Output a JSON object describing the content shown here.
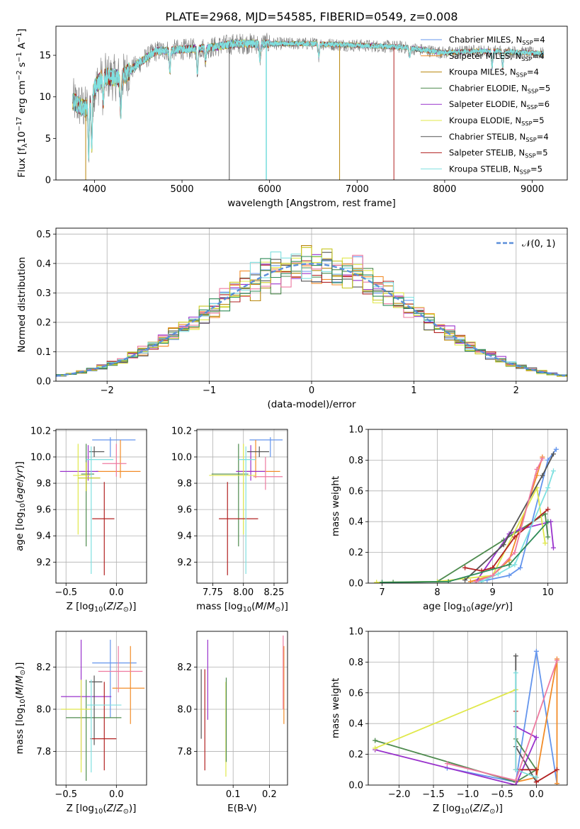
{
  "colors": [
    "#6495ED",
    "#F28C28",
    "#B8860B",
    "#4E8B4E",
    "#9932CC",
    "#E0E84A",
    "#555555",
    "#B22222",
    "#7FE0E0",
    "#EE7AA0",
    "#C8C820",
    "#2E8B57"
  ],
  "legend_labels": [
    "Chabrier MILES, N<sub>SSP</sub>=4",
    "Salpeter MILES, N<sub>SSP</sub>=4",
    "Kroupa MILES, N<sub>SSP</sub>=4",
    "Chabrier ELODIE, N<sub>SSP</sub>=5",
    "Salpeter ELODIE, N<sub>SSP</sub>=6",
    "Kroupa ELODIE, N<sub>SSP</sub>=5",
    "Chabrier STELIB, N<sub>SSP</sub>=4",
    "Salpeter STELIB, N<sub>SSP</sub>=5",
    "Kroupa STELIB, N<sub>SSP</sub>=5"
  ],
  "chart_data": [
    {
      "id": "spectrum",
      "type": "line",
      "title": "PLATE=2968, MJD=54585, FIBERID=0549, z=0.008",
      "xlabel": "wavelength [Angstrom, rest frame]",
      "ylabel": "Flux [f<sub>λ</sub>10<sup>−17</sup> erg cm<sup>−2</sup> s<sup>−1</sup> A<sup>−1</sup>]",
      "xlim": [
        3560,
        9400
      ],
      "ylim": [
        0,
        18.5
      ],
      "xticks": [
        4000,
        5000,
        6000,
        7000,
        8000,
        9000
      ],
      "yticks": [
        0,
        5,
        10,
        15
      ],
      "grid": false,
      "legend": "top-right",
      "series_x_range": [
        3750,
        9130
      ],
      "continuum": [
        [
          3750,
          9.5
        ],
        [
          3900,
          8.5
        ],
        [
          4000,
          11
        ],
        [
          4100,
          12.5
        ],
        [
          4300,
          12.2
        ],
        [
          4500,
          14
        ],
        [
          4700,
          15.5
        ],
        [
          5000,
          15.7
        ],
        [
          5300,
          15.9
        ],
        [
          5600,
          16.4
        ],
        [
          6000,
          16.4
        ],
        [
          6500,
          16.4
        ],
        [
          7000,
          16.2
        ],
        [
          7500,
          16.0
        ],
        [
          8000,
          15.3
        ],
        [
          8300,
          15.5
        ],
        [
          8600,
          15.5
        ],
        [
          9130,
          15.2
        ]
      ],
      "absorption_features": [
        [
          3934,
          6
        ],
        [
          3969,
          6
        ],
        [
          4101,
          3
        ],
        [
          4300,
          4
        ],
        [
          4861,
          2.5
        ],
        [
          5175,
          3
        ],
        [
          5270,
          1.5
        ],
        [
          5890,
          2
        ],
        [
          6563,
          1.5
        ],
        [
          7600,
          1
        ],
        [
          8542,
          2
        ],
        [
          8662,
          2
        ]
      ],
      "drop_lines": [
        [
          3900,
          2
        ],
        [
          5540,
          6
        ],
        [
          5960,
          0
        ],
        [
          5965,
          8
        ],
        [
          6800,
          2
        ],
        [
          7420,
          7
        ]
      ],
      "observed_color": "#777777"
    },
    {
      "id": "residuals",
      "type": "histogram",
      "xlabel": "(data-model)/error",
      "ylabel": "Normed distribution",
      "xlim": [
        -2.5,
        2.5
      ],
      "ylim": [
        0,
        0.52
      ],
      "xticks": [
        -2,
        -1,
        0,
        1,
        2
      ],
      "xtick_labels": [
        "−2",
        "−1",
        "0",
        "1",
        "2"
      ],
      "yticks": [
        0,
        0.1,
        0.2,
        0.3,
        0.4,
        0.5
      ],
      "grid": true,
      "reference": {
        "label": "𝒩(0, 1)",
        "type": "gaussian",
        "mean": 0,
        "sigma": 1,
        "color": "#5B8FD9",
        "dashed": true
      },
      "bin_width": 0.1,
      "series_count": 12
    },
    {
      "id": "age_vs_Z",
      "type": "errorbar",
      "xlabel": "Z [log<sub>10</sub>(<i>Z</i>/<i>Z</i><sub>⊙</sub>)]",
      "ylabel": "age  [log<sub>10</sub>(<i>age</i>/<i>yr</i>)]",
      "xlim": [
        -0.6,
        0.3
      ],
      "ylim": [
        9.04,
        10.21
      ],
      "xticks": [
        -0.5,
        0.0
      ],
      "xtick_labels": [
        "−0.5",
        "0.0"
      ],
      "yticks": [
        9.2,
        9.4,
        9.6,
        9.8,
        10.0,
        10.2
      ],
      "grid": true,
      "points": [
        {
          "c": 0,
          "x": -0.06,
          "xe": [
            0.18,
            0.25
          ],
          "y": 10.13,
          "ye": [
            0.13,
            0.02
          ]
        },
        {
          "c": 1,
          "x": 0.04,
          "xe": [
            0.24,
            0.2
          ],
          "y": 9.89,
          "ye": [
            0.05,
            0.24
          ]
        },
        {
          "c": 3,
          "x": -0.3,
          "xe": [
            0.05,
            0.08
          ],
          "y": 9.87,
          "ye": [
            0.55,
            0.23
          ]
        },
        {
          "c": 4,
          "x": -0.28,
          "xe": [
            0.28,
            0.1
          ],
          "y": 9.89,
          "ye": [
            0.07,
            0.2
          ]
        },
        {
          "c": 5,
          "x": -0.38,
          "xe": [
            0.05,
            0.12
          ],
          "y": 9.86,
          "ye": [
            0.45,
            0.24
          ]
        },
        {
          "c": 6,
          "x": -0.22,
          "xe": [
            0.05,
            0.1
          ],
          "y": 10.04,
          "ye": [
            0.04,
            0.04
          ]
        },
        {
          "c": 7,
          "x": -0.12,
          "xe": [
            0.12,
            0.1
          ],
          "y": 9.53,
          "ye": [
            0.43,
            0.28
          ]
        },
        {
          "c": 8,
          "x": -0.25,
          "xe": [
            0.05,
            0.22
          ],
          "y": 9.98,
          "ye": [
            0.87,
            0.1
          ]
        },
        {
          "c": 9,
          "x": 0.0,
          "xe": [
            0.14,
            0.1
          ],
          "y": 9.95,
          "ye": [
            0.1,
            0.15
          ]
        },
        {
          "c": 10,
          "x": -0.3,
          "xe": [
            0.08,
            0.14
          ],
          "y": 9.84,
          "ye": [
            0.1,
            0.12
          ]
        }
      ]
    },
    {
      "id": "age_vs_mass",
      "type": "errorbar",
      "xlabel": "mass [log<sub>10</sub>(<i>M</i>/<i>M</i><sub>⊙</sub>)]",
      "ylabel": "",
      "xlim": [
        7.62,
        8.36
      ],
      "ylim": [
        9.04,
        10.21
      ],
      "xticks": [
        7.75,
        8.0,
        8.25
      ],
      "xtick_labels": [
        "7.75",
        "8.00",
        "8.25"
      ],
      "yticks": [
        9.2,
        9.4,
        9.6,
        9.8,
        10.0,
        10.2
      ],
      "grid": true,
      "points": [
        {
          "c": 0,
          "x": 8.22,
          "xe": [
            0.17,
            0.1
          ],
          "y": 10.13,
          "ye": [
            0.13,
            0.02
          ]
        },
        {
          "c": 1,
          "x": 8.1,
          "xe": [
            0.15,
            0.2
          ],
          "y": 9.89,
          "ye": [
            0.05,
            0.24
          ]
        },
        {
          "c": 3,
          "x": 7.96,
          "xe": [
            0.22,
            0.08
          ],
          "y": 9.87,
          "ye": [
            0.55,
            0.23
          ]
        },
        {
          "c": 4,
          "x": 8.06,
          "xe": [
            0.12,
            0.12
          ],
          "y": 9.89,
          "ye": [
            0.07,
            0.2
          ]
        },
        {
          "c": 5,
          "x": 8.0,
          "xe": [
            0.28,
            0.1
          ],
          "y": 9.86,
          "ye": [
            0.45,
            0.24
          ]
        },
        {
          "c": 6,
          "x": 8.13,
          "xe": [
            0.1,
            0.08
          ],
          "y": 10.04,
          "ye": [
            0.04,
            0.04
          ]
        },
        {
          "c": 7,
          "x": 7.87,
          "xe": [
            0.07,
            0.25
          ],
          "y": 9.53,
          "ye": [
            0.43,
            0.28
          ]
        },
        {
          "c": 8,
          "x": 8.02,
          "xe": [
            0.06,
            0.08
          ],
          "y": 9.98,
          "ye": [
            0.87,
            0.1
          ]
        },
        {
          "c": 9,
          "x": 8.18,
          "xe": [
            0.1,
            0.14
          ],
          "y": 9.85,
          "ye": [
            0.1,
            0.15
          ]
        }
      ]
    },
    {
      "id": "mass_weight_vs_age",
      "type": "line",
      "xlabel": "age  [log<sub>10</sub>(<i>age</i>/<i>yr</i>)]",
      "ylabel": "mass weight",
      "xlim": [
        6.75,
        10.35
      ],
      "ylim": [
        0,
        1.0
      ],
      "xticks": [
        7,
        8,
        9,
        10
      ],
      "xtick_labels": [
        "7",
        "8",
        "9",
        "10"
      ],
      "yticks": [
        0.0,
        0.2,
        0.4,
        0.6,
        0.8,
        1.0
      ],
      "grid": true,
      "series": [
        {
          "c": 0,
          "x": [
            8.7,
            8.9,
            9.3,
            9.5,
            10.0,
            10.15
          ],
          "y": [
            0.01,
            0.02,
            0.05,
            0.1,
            0.8,
            0.87
          ]
        },
        {
          "c": 1,
          "x": 8.6,
          "x2": [
            8.6,
            9.0,
            9.3,
            9.8,
            9.9
          ],
          "y": [
            0.01,
            0.05,
            0.15,
            0.7,
            0.82
          ]
        },
        {
          "c": 3,
          "x": [
            7.2,
            8.0,
            9.2,
            9.95,
            10.0
          ],
          "y": [
            0.005,
            0.01,
            0.28,
            0.45,
            0.3
          ]
        },
        {
          "c": 4,
          "x": [
            8.7,
            9.3,
            9.5,
            10.05,
            10.1
          ],
          "y": [
            0.01,
            0.32,
            0.35,
            0.4,
            0.23
          ]
        },
        {
          "c": 5,
          "x": [
            6.9,
            8.0,
            9.0,
            9.8,
            9.95
          ],
          "y": [
            0.005,
            0.01,
            0.05,
            0.62,
            0.26
          ]
        },
        {
          "c": 6,
          "x": [
            8.5,
            9.2,
            9.9,
            10.1
          ],
          "y": [
            0.02,
            0.25,
            0.7,
            0.84
          ]
        },
        {
          "c": 7,
          "x": [
            8.5,
            8.8,
            9.0,
            9.4,
            10.0
          ],
          "y": [
            0.1,
            0.08,
            0.1,
            0.3,
            0.48
          ]
        },
        {
          "c": 8,
          "x": [
            8.8,
            9.1,
            9.4,
            10.0,
            10.1
          ],
          "y": [
            0.01,
            0.06,
            0.12,
            0.62,
            0.73
          ]
        },
        {
          "c": 9,
          "x": [
            8.7,
            9.0,
            9.4,
            9.8,
            9.9
          ],
          "y": [
            0.01,
            0.05,
            0.2,
            0.74,
            0.81
          ]
        },
        {
          "c": 11,
          "x": [
            7.0,
            8.2,
            9.3,
            10.0
          ],
          "y": [
            0.005,
            0.01,
            0.12,
            0.4
          ]
        }
      ]
    },
    {
      "id": "mass_vs_Z",
      "type": "errorbar",
      "xlabel": "Z [log<sub>10</sub>(<i>Z</i>/<i>Z</i><sub>⊙</sub>)]",
      "ylabel": "mass [log<sub>10</sub>(<i>M</i>/<i>M</i><sub>⊙</sub>)]",
      "xlim": [
        -0.6,
        0.3
      ],
      "ylim": [
        7.64,
        8.37
      ],
      "xticks": [
        -0.5,
        0.0
      ],
      "xtick_labels": [
        "−0.5",
        "0.0"
      ],
      "yticks": [
        7.8,
        8.0,
        8.2
      ],
      "grid": true,
      "points": [
        {
          "c": 0,
          "x": -0.06,
          "xe": [
            0.18,
            0.26
          ],
          "y": 8.22,
          "ye": [
            0.26,
            0.11
          ]
        },
        {
          "c": 1,
          "x": 0.14,
          "xe": [
            0.18,
            0.14
          ],
          "y": 8.1,
          "ye": [
            0.17,
            0.2
          ]
        },
        {
          "c": 3,
          "x": -0.3,
          "xe": [
            0.2,
            0.35
          ],
          "y": 7.96,
          "ye": [
            0.3,
            0.18
          ]
        },
        {
          "c": 4,
          "x": -0.35,
          "xe": [
            0.2,
            0.3
          ],
          "y": 8.06,
          "ye": [
            0.3,
            0.27
          ]
        },
        {
          "c": 5,
          "x": -0.35,
          "xe": [
            0.2,
            0.1
          ],
          "y": 8.0,
          "ye": [
            0.3,
            0.14
          ]
        },
        {
          "c": 6,
          "x": -0.22,
          "xe": [
            0.05,
            0.08
          ],
          "y": 8.13,
          "ye": [
            0.3,
            0.03
          ]
        },
        {
          "c": 7,
          "x": -0.12,
          "xe": [
            0.14,
            0.12
          ],
          "y": 7.86,
          "ye": [
            0.15,
            0.27
          ]
        },
        {
          "c": 8,
          "x": -0.25,
          "xe": [
            0.04,
            0.3
          ],
          "y": 8.02,
          "ye": [
            0.32,
            0.12
          ]
        },
        {
          "c": 9,
          "x": 0.02,
          "xe": [
            0.2,
            0.24
          ],
          "y": 8.18,
          "ye": [
            0.1,
            0.12
          ]
        }
      ]
    },
    {
      "id": "mass_vs_EBV",
      "type": "errorbar",
      "xlabel": "E(B-V)",
      "ylabel": "",
      "xlim": [
        0.0,
        0.25
      ],
      "ylim": [
        7.64,
        8.37
      ],
      "xticks": [
        0.1,
        0.2
      ],
      "xtick_labels": [
        "0.1",
        "0.2"
      ],
      "yticks": [
        7.8,
        8.0,
        8.2
      ],
      "grid": true,
      "points": [
        {
          "c": 6,
          "x": 0.012,
          "y": 8.02,
          "ye": [
            0.16,
            0.17
          ]
        },
        {
          "c": 7,
          "x": 0.022,
          "y": 7.96,
          "ye": [
            0.25,
            0.23
          ]
        },
        {
          "c": 4,
          "x": 0.03,
          "y": 8.13,
          "ye": [
            0.18,
            0.2
          ]
        },
        {
          "c": 5,
          "x": 0.08,
          "y": 7.93,
          "ye": [
            0.25,
            0.2
          ]
        },
        {
          "c": 3,
          "x": 0.081,
          "y": 7.95,
          "ye": [
            0.2,
            0.2
          ]
        },
        {
          "c": 1,
          "x": 0.24,
          "y": 8.1,
          "ye": [
            0.17,
            0.2
          ]
        },
        {
          "c": 9,
          "x": 0.238,
          "y": 8.15,
          "ye": [
            0.15,
            0.2
          ]
        }
      ]
    },
    {
      "id": "mass_weight_vs_Z",
      "type": "line",
      "xlabel": "Z [log<sub>10</sub>(<i>Z</i>/<i>Z</i><sub>⊙</sub>)]",
      "ylabel": "mass weight",
      "xlim": [
        -2.45,
        0.45
      ],
      "ylim": [
        0,
        1.0
      ],
      "xticks": [
        -2.0,
        -1.5,
        -1.0,
        -0.5,
        0.0
      ],
      "xtick_labels": [
        "−2.0",
        "−1.5",
        "−1.0",
        "−0.5",
        "0.0"
      ],
      "yticks": [
        0.0,
        0.2,
        0.4,
        0.6,
        0.8,
        1.0
      ],
      "grid": true,
      "series": [
        {
          "c": 0,
          "x": [
            -1.3,
            -0.3,
            0.0,
            0.3
          ],
          "y": [
            0.11,
            0.02,
            0.87,
            0.01
          ]
        },
        {
          "c": 1,
          "x": [
            -0.3,
            0.0,
            0.3,
            0.3
          ],
          "y": [
            0.02,
            0.05,
            0.82,
            0.01
          ]
        },
        {
          "c": 3,
          "x": [
            -2.35,
            -0.3,
            0.0,
            -0.3
          ],
          "y": [
            0.29,
            0.02,
            0.1,
            0.3
          ]
        },
        {
          "c": 4,
          "x": [
            -2.35,
            -0.3,
            0.0,
            -0.3
          ],
          "y": [
            0.23,
            0.0,
            0.31,
            0.38
          ]
        },
        {
          "c": 5,
          "x": [
            -2.35,
            -0.3
          ],
          "y": [
            0.24,
            0.62
          ]
        },
        {
          "c": 6,
          "x": [
            -0.3,
            -0.3,
            0.0
          ],
          "y": [
            0.84,
            0.25,
            0.02
          ]
        },
        {
          "c": 7,
          "x": [
            -0.3,
            -0.3,
            0.0,
            0.0,
            0.3
          ],
          "y": [
            0.48,
            0.1,
            0.1,
            0.02,
            0.1
          ]
        },
        {
          "c": 8,
          "x": [
            -0.3,
            -0.3,
            0.0
          ],
          "y": [
            0.73,
            0.1,
            0.05
          ]
        },
        {
          "c": 9,
          "x": [
            -1.3,
            -0.3,
            0.3
          ],
          "y": [
            0.14,
            0.03,
            0.81
          ]
        }
      ]
    }
  ]
}
